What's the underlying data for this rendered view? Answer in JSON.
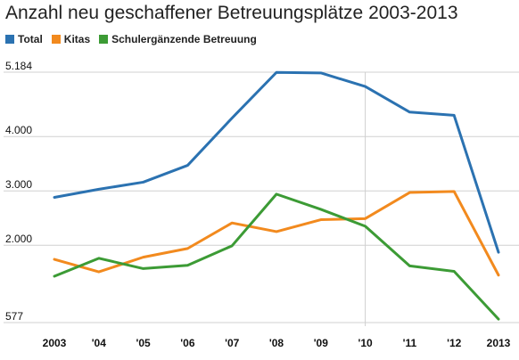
{
  "chart_data": {
    "type": "line",
    "title": "Anzahl neu geschaffener Betreuungsplätze 2003-2013",
    "categories": [
      "2003",
      "'04",
      "'05",
      "'06",
      "'07",
      "'08",
      "'09",
      "'10",
      "'11",
      "'12",
      "2013"
    ],
    "y_tick_labels": [
      "5.184",
      "4.000",
      "3.000",
      "2.000",
      "577"
    ],
    "y_tick_values": [
      5184,
      4000,
      3000,
      2000,
      577
    ],
    "ylim": [
      577,
      5184
    ],
    "grid": true,
    "legend_position": "top-left",
    "series": [
      {
        "name": "Total",
        "color": "#2B72B1",
        "values": [
          2880,
          3030,
          3160,
          3470,
          4340,
          5180,
          5170,
          4920,
          4450,
          4390,
          1870
        ]
      },
      {
        "name": "Kitas",
        "color": "#F28A1E",
        "values": [
          1740,
          1510,
          1780,
          1940,
          2410,
          2250,
          2470,
          2490,
          2970,
          2990,
          1450
        ]
      },
      {
        "name": "Schulergänzende Betreuung",
        "color": "#3C9B35",
        "values": [
          1430,
          1760,
          1570,
          1630,
          1990,
          2940,
          2660,
          2350,
          1620,
          1520,
          640
        ]
      }
    ]
  }
}
